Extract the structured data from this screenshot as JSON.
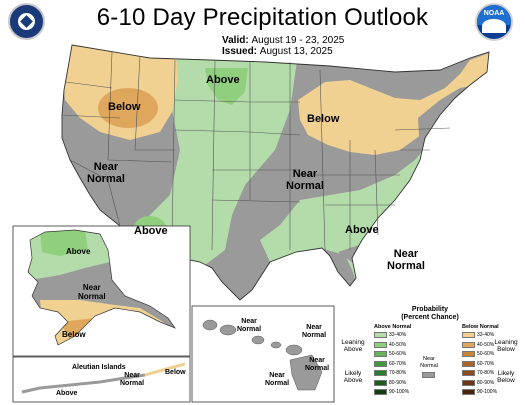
{
  "title": "6-10 Day Precipitation Outlook",
  "valid": {
    "label": "Valid:",
    "value": "August 19 - 23, 2025"
  },
  "issued": {
    "label": "Issued:",
    "value": "August 13, 2025"
  },
  "colors": {
    "above_33": "#b4dcab",
    "above_40": "#8fcf7e",
    "below_33": "#f0d192",
    "below_40": "#dfa75b",
    "near_normal": "#9a9a9a",
    "background": "#ffffff",
    "border_line": "#333333"
  },
  "map_labels": {
    "below_nw": "Below",
    "above_north": "Above",
    "below_greatlakes": "Below",
    "near_normal_west": "Near\nNormal",
    "near_normal_central": "Near\nNormal",
    "above_sw": "Above",
    "above_se": "Above",
    "near_normal_se": "Near\nNormal"
  },
  "alaska": {
    "above": "Above",
    "near_normal": "Near\nNormal",
    "below": "Below",
    "aleutian_title": "Aleutian Islands",
    "aleutian_near": "Near\nNormal",
    "aleutian_above": "Above",
    "aleutian_below": "Below"
  },
  "hawaii": {
    "nn1": "Near\nNormal",
    "nn2": "Near\nNormal",
    "nn3": "Near\nNormal",
    "nn4": "Near\nNormal"
  },
  "legend": {
    "title": "Probability",
    "subtitle": "(Percent Chance)",
    "above_header": "Above Normal",
    "below_header": "Below Normal",
    "near_normal": "Near\nNormal",
    "leaning_above": "Leaning\nAbove",
    "likely_above": "Likely\nAbove",
    "leaning_below": "Leaning\nBelow",
    "likely_below": "Likely\nBelow",
    "above_bins": [
      "33-40%",
      "40-50%",
      "50-60%",
      "60-70%",
      "70-80%",
      "80-90%",
      "90-100%"
    ],
    "below_bins": [
      "33-40%",
      "40-50%",
      "50-60%",
      "60-70%",
      "70-80%",
      "80-90%",
      "90-100%"
    ],
    "above_colors": [
      "#b4dcab",
      "#8fcf7e",
      "#67b45a",
      "#3f9a3a",
      "#2a7d2a",
      "#1c5f1c",
      "#0f3f0f"
    ],
    "below_colors": [
      "#f0d192",
      "#dfa75b",
      "#c98438",
      "#ab6528",
      "#8a4b1c",
      "#6a3613",
      "#4b240c"
    ]
  },
  "logos": {
    "left": "us-department-of-commerce-seal",
    "right": "noaa-logo",
    "noaa_text": "NOAA"
  }
}
